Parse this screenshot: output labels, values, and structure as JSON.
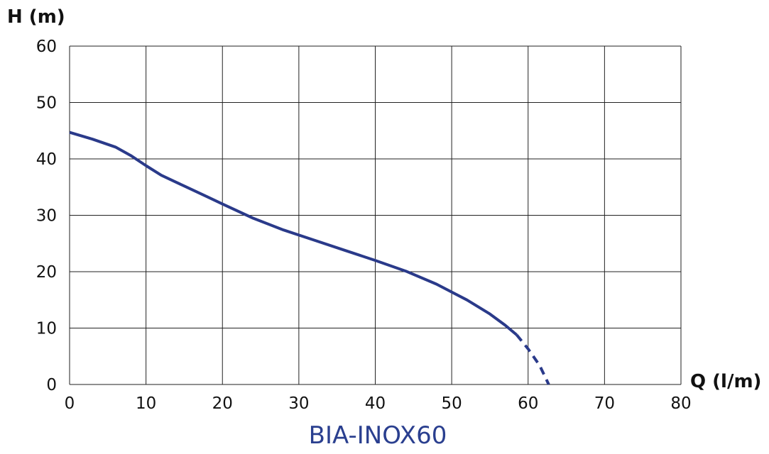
{
  "chart_data": {
    "type": "line",
    "title": "BIA-INOX60",
    "xlabel": "Q (l/m)",
    "ylabel": "H (m)",
    "xlim": [
      0,
      80
    ],
    "ylim": [
      0,
      60
    ],
    "xticks": [
      0,
      10,
      20,
      30,
      40,
      50,
      60,
      70,
      80
    ],
    "yticks": [
      0,
      10,
      20,
      30,
      40,
      50,
      60
    ],
    "grid": true,
    "line_color": "#2a3a8a",
    "series": [
      {
        "style": "solid",
        "x": [
          0,
          3,
          6,
          8,
          10,
          12,
          15,
          18,
          20,
          24,
          28,
          32,
          36,
          40,
          44,
          48,
          52,
          55,
          57,
          58.5
        ],
        "y": [
          44.7,
          43.5,
          42.1,
          40.6,
          38.8,
          37.1,
          35.2,
          33.3,
          32.0,
          29.5,
          27.4,
          25.6,
          23.8,
          22.0,
          20.1,
          17.8,
          15.0,
          12.5,
          10.5,
          8.8
        ]
      },
      {
        "style": "dashed",
        "x": [
          58.5,
          60,
          61.5,
          62.7
        ],
        "y": [
          8.8,
          6.3,
          3.4,
          0.0
        ]
      }
    ]
  }
}
